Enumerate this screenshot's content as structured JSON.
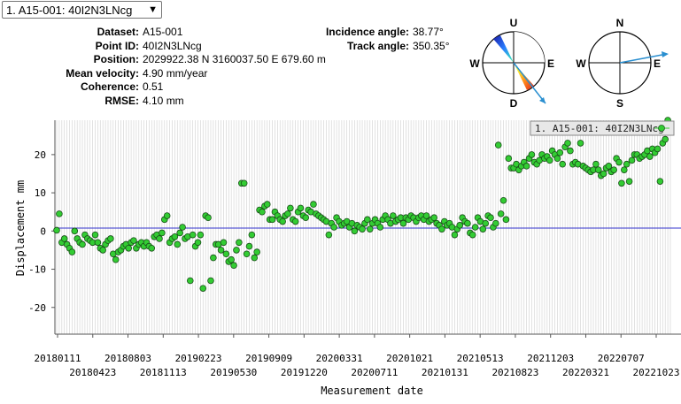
{
  "selector": {
    "value": "1. A15-001: 40I2N3LNcg"
  },
  "info": [
    {
      "label": "Dataset:",
      "value": "A15-001"
    },
    {
      "label": "Point ID:",
      "value": "40I2N3LNcg"
    },
    {
      "label": "Position:",
      "value": "2029922.38 N 3160037.50 E 679.60 m"
    },
    {
      "label": "Mean velocity:",
      "value": "4.90 mm/year"
    },
    {
      "label": "Coherence:",
      "value": "0.51"
    },
    {
      "label": "RMSE:",
      "value": "4.10 mm"
    }
  ],
  "angles": [
    {
      "label": "Incidence angle:",
      "value": "38.77°"
    },
    {
      "label": "Track angle:",
      "value": "350.35°"
    }
  ],
  "compass_incidence": {
    "top": "U",
    "bottom": "D",
    "left": "W",
    "right": "E"
  },
  "compass_track": {
    "top": "N",
    "bottom": "S",
    "left": "W",
    "right": "E"
  },
  "chart_data": {
    "type": "scatter",
    "ylabel": "Displacement mm",
    "xlabel": "Measurement date",
    "ylim": [
      -27,
      29
    ],
    "yticks": [
      20,
      10,
      0,
      -10,
      -20
    ],
    "xticks_upper": [
      "20180111",
      "20180803",
      "20190223",
      "20190909",
      "20200331",
      "20201021",
      "20210513",
      "20211203",
      "20220707"
    ],
    "xticks_lower": [
      "20180423",
      "20181113",
      "20190530",
      "20191220",
      "20200711",
      "20210131",
      "20210823",
      "20220321",
      "20221023"
    ],
    "legend": "1. A15-001: 40I2N3LNcg",
    "series": [
      {
        "name": "1. A15-001: 40I2N3LNcg",
        "color": "#33cc33",
        "points": [
          [
            0,
            0.2
          ],
          [
            1,
            4.5
          ],
          [
            2,
            -3
          ],
          [
            3,
            -2
          ],
          [
            4,
            -3.5
          ],
          [
            5,
            -4.5
          ],
          [
            6,
            -5.5
          ],
          [
            7,
            0
          ],
          [
            8,
            -2
          ],
          [
            9,
            -3
          ],
          [
            10,
            -3.5
          ],
          [
            11,
            -1
          ],
          [
            12,
            -2
          ],
          [
            13,
            -2.5
          ],
          [
            14,
            -3
          ],
          [
            15,
            -1
          ],
          [
            16,
            -3
          ],
          [
            17,
            -4.5
          ],
          [
            18,
            -5
          ],
          [
            19,
            -3.5
          ],
          [
            20,
            -2.5
          ],
          [
            21,
            -2
          ],
          [
            22,
            -6
          ],
          [
            23,
            -7.5
          ],
          [
            24,
            -5.5
          ],
          [
            25,
            -5
          ],
          [
            26,
            -4
          ],
          [
            27,
            -3.5
          ],
          [
            28,
            -4.5
          ],
          [
            29,
            -3
          ],
          [
            30,
            -2.5
          ],
          [
            31,
            -4.5
          ],
          [
            32,
            -3.5
          ],
          [
            33,
            -3
          ],
          [
            34,
            -4
          ],
          [
            35,
            -3
          ],
          [
            36,
            -4
          ],
          [
            37,
            -4.5
          ],
          [
            38,
            -1.5
          ],
          [
            39,
            -1
          ],
          [
            40,
            -2
          ],
          [
            41,
            -0.5
          ],
          [
            42,
            3
          ],
          [
            43,
            4
          ],
          [
            44,
            -3
          ],
          [
            45,
            -2
          ],
          [
            46,
            -1.5
          ],
          [
            47,
            -3.5
          ],
          [
            48,
            -0.5
          ],
          [
            49,
            1
          ],
          [
            50,
            -2
          ],
          [
            51,
            -1.5
          ],
          [
            52,
            -13
          ],
          [
            53,
            -1
          ],
          [
            54,
            -4
          ],
          [
            55,
            -3
          ],
          [
            56,
            -1
          ],
          [
            57,
            -15
          ],
          [
            58,
            4
          ],
          [
            59,
            3.5
          ],
          [
            60,
            -13
          ],
          [
            61,
            -7
          ],
          [
            62,
            -3.5
          ],
          [
            63,
            -3.5
          ],
          [
            64,
            -5
          ],
          [
            65,
            -3
          ],
          [
            66,
            -6
          ],
          [
            67,
            -8
          ],
          [
            68,
            -7.5
          ],
          [
            69,
            -9
          ],
          [
            70,
            -5
          ],
          [
            71,
            -3
          ],
          [
            72,
            12.5
          ],
          [
            73,
            12.5
          ],
          [
            74,
            -6
          ],
          [
            75,
            -4
          ],
          [
            76,
            -1
          ],
          [
            77,
            -7
          ],
          [
            78,
            -5.5
          ],
          [
            79,
            5.5
          ],
          [
            80,
            5
          ],
          [
            81,
            6.5
          ],
          [
            82,
            7
          ],
          [
            83,
            3
          ],
          [
            84,
            3
          ],
          [
            85,
            5
          ],
          [
            86,
            4
          ],
          [
            87,
            3
          ],
          [
            88,
            2.5
          ],
          [
            89,
            4
          ],
          [
            90,
            4.5
          ],
          [
            91,
            6
          ],
          [
            92,
            3
          ],
          [
            93,
            2.5
          ],
          [
            94,
            5
          ],
          [
            95,
            6
          ],
          [
            96,
            4
          ],
          [
            97,
            3.5
          ],
          [
            98,
            5.5
          ],
          [
            99,
            5
          ],
          [
            100,
            7
          ],
          [
            101,
            4.5
          ],
          [
            102,
            4
          ],
          [
            103,
            3.5
          ],
          [
            104,
            3
          ],
          [
            105,
            2.5
          ],
          [
            106,
            -1
          ],
          [
            107,
            2
          ],
          [
            108,
            1
          ],
          [
            109,
            3.5
          ],
          [
            110,
            2.5
          ],
          [
            111,
            1.5
          ],
          [
            112,
            2
          ],
          [
            113,
            2.5
          ],
          [
            114,
            1
          ],
          [
            115,
            2
          ],
          [
            116,
            0
          ],
          [
            117,
            1.5
          ],
          [
            118,
            1
          ],
          [
            119,
            0.5
          ],
          [
            120,
            2
          ],
          [
            121,
            3
          ],
          [
            122,
            0.5
          ],
          [
            123,
            2
          ],
          [
            124,
            3
          ],
          [
            125,
            2
          ],
          [
            126,
            1
          ],
          [
            127,
            3
          ],
          [
            128,
            4
          ],
          [
            129,
            3
          ],
          [
            130,
            2
          ],
          [
            131,
            4
          ],
          [
            132,
            2.5
          ],
          [
            133,
            3
          ],
          [
            134,
            3.5
          ],
          [
            135,
            2
          ],
          [
            136,
            3.5
          ],
          [
            137,
            3
          ],
          [
            138,
            4
          ],
          [
            139,
            3.5
          ],
          [
            140,
            2.5
          ],
          [
            141,
            3.5
          ],
          [
            142,
            4
          ],
          [
            143,
            3
          ],
          [
            144,
            4
          ],
          [
            145,
            2.5
          ],
          [
            146,
            3
          ],
          [
            147,
            3.5
          ],
          [
            148,
            2
          ],
          [
            149,
            1.5
          ],
          [
            150,
            0.5
          ],
          [
            151,
            2.5
          ],
          [
            152,
            1.5
          ],
          [
            153,
            2
          ],
          [
            154,
            1
          ],
          [
            155,
            -1
          ],
          [
            156,
            0.5
          ],
          [
            157,
            1.5
          ],
          [
            158,
            3.5
          ],
          [
            159,
            2.5
          ],
          [
            160,
            2
          ],
          [
            161,
            -0.5
          ],
          [
            162,
            -1
          ],
          [
            163,
            1
          ],
          [
            164,
            3.5
          ],
          [
            165,
            2.5
          ],
          [
            166,
            0.5
          ],
          [
            167,
            2
          ],
          [
            168,
            4
          ],
          [
            169,
            3.5
          ],
          [
            170,
            1
          ],
          [
            171,
            2
          ],
          [
            172,
            22.5
          ],
          [
            173,
            4.5
          ],
          [
            174,
            8
          ],
          [
            175,
            3
          ],
          [
            176,
            19
          ],
          [
            177,
            16.5
          ],
          [
            178,
            16.5
          ],
          [
            179,
            17.5
          ],
          [
            180,
            16
          ],
          [
            181,
            17
          ],
          [
            182,
            18
          ],
          [
            183,
            17
          ],
          [
            184,
            19
          ],
          [
            185,
            20
          ],
          [
            186,
            18
          ],
          [
            187,
            17.5
          ],
          [
            188,
            18.5
          ],
          [
            189,
            20
          ],
          [
            190,
            19
          ],
          [
            191,
            19.5
          ],
          [
            192,
            18.5
          ],
          [
            193,
            21
          ],
          [
            194,
            20
          ],
          [
            195,
            19
          ],
          [
            196,
            20.5
          ],
          [
            197,
            17.5
          ],
          [
            198,
            22
          ],
          [
            199,
            23
          ],
          [
            200,
            21
          ],
          [
            201,
            17.5
          ],
          [
            202,
            18
          ],
          [
            203,
            17.5
          ],
          [
            204,
            23
          ],
          [
            205,
            17
          ],
          [
            206,
            16.5
          ],
          [
            207,
            16
          ],
          [
            208,
            15.5
          ],
          [
            209,
            16
          ],
          [
            210,
            17.5
          ],
          [
            211,
            16
          ],
          [
            212,
            14.5
          ],
          [
            213,
            15
          ],
          [
            214,
            16.5
          ],
          [
            215,
            17
          ],
          [
            216,
            15.5
          ],
          [
            217,
            16
          ],
          [
            218,
            19
          ],
          [
            219,
            18
          ],
          [
            220,
            12.5
          ],
          [
            221,
            16
          ],
          [
            222,
            17.5
          ],
          [
            223,
            13
          ],
          [
            224,
            18.5
          ],
          [
            225,
            20
          ],
          [
            226,
            20
          ],
          [
            227,
            19
          ],
          [
            228,
            19.5
          ],
          [
            229,
            20
          ],
          [
            230,
            21
          ],
          [
            231,
            19.5
          ],
          [
            232,
            21.5
          ],
          [
            233,
            20.5
          ],
          [
            234,
            21.5
          ],
          [
            235,
            13
          ],
          [
            236,
            23
          ],
          [
            237,
            24
          ],
          [
            238,
            29
          ],
          [
            239,
            26.5
          ]
        ]
      }
    ]
  }
}
